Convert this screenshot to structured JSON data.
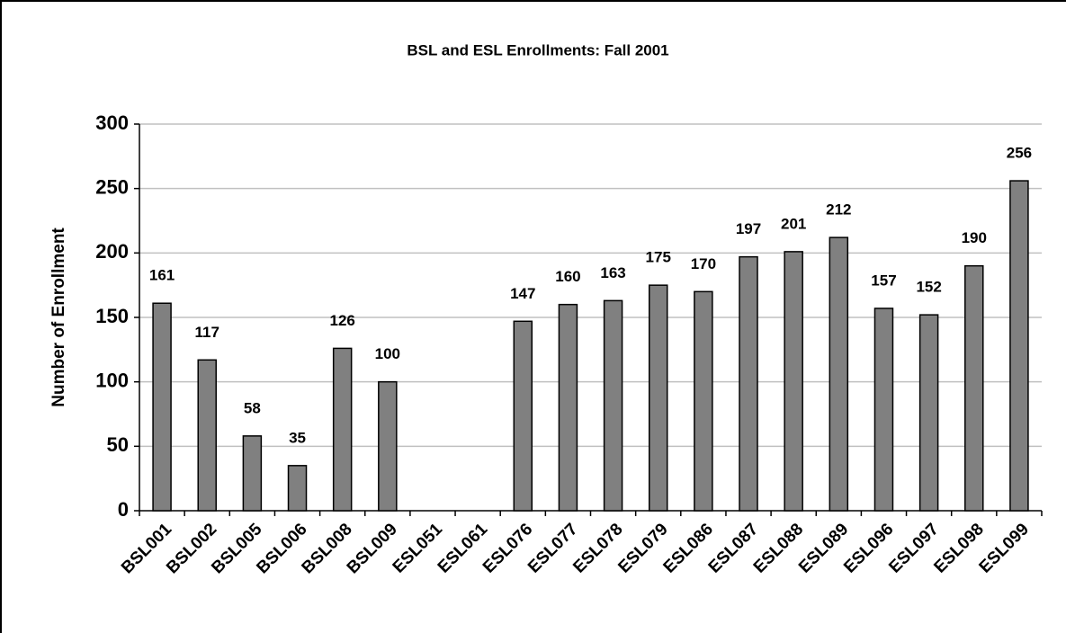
{
  "chart_data": {
    "type": "bar",
    "title": "BSL and ESL Enrollments:  Fall 2001",
    "y_label": "Number of Enrollment",
    "categories": [
      "BSL001",
      "BSL002",
      "BSL005",
      "BSL006",
      "BSL008",
      "BSL009",
      "ESL051",
      "ESL061",
      "ESL076",
      "ESL077",
      "ESL078",
      "ESL079",
      "ESL086",
      "ESL087",
      "ESL088",
      "ESL089",
      "ESL096",
      "ESL097",
      "ESL098",
      "ESL099"
    ],
    "values": [
      161,
      117,
      58,
      35,
      126,
      100,
      null,
      null,
      147,
      160,
      163,
      175,
      170,
      197,
      201,
      212,
      157,
      152,
      190,
      256
    ],
    "color": "#808080",
    "ylim": [
      0,
      300
    ],
    "yticks": [
      0,
      50,
      100,
      150,
      200,
      250,
      300
    ],
    "grid": true
  }
}
